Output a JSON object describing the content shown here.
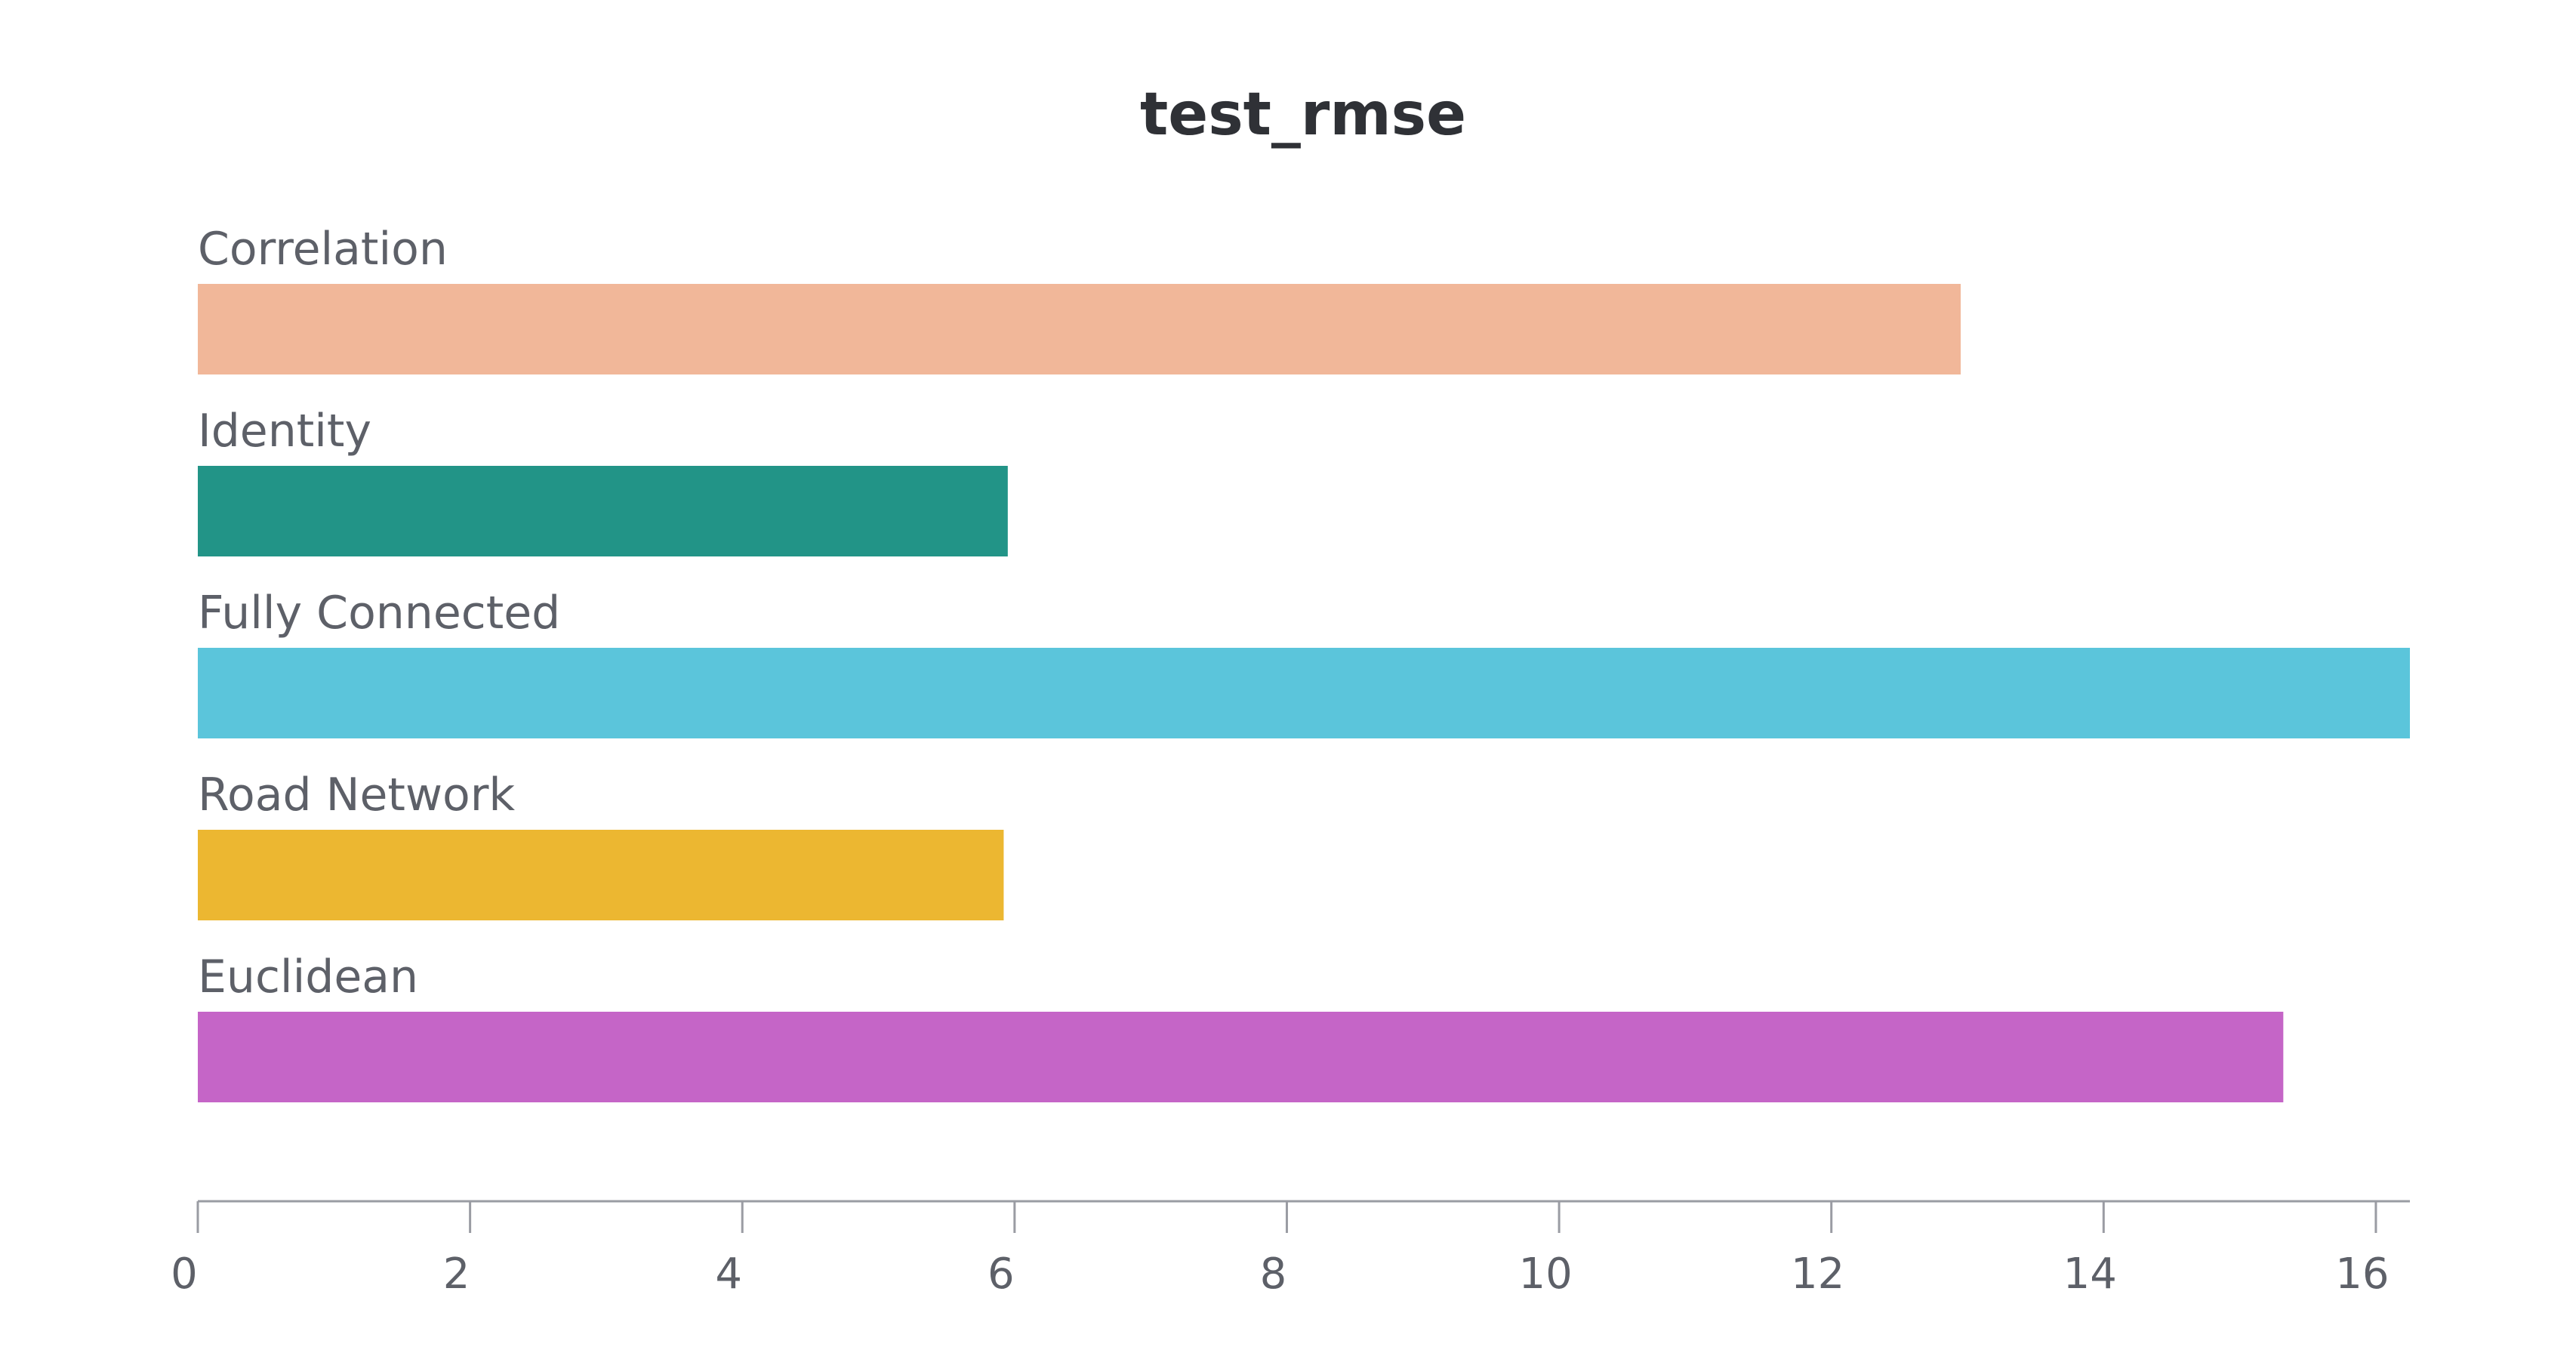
{
  "chart_data": {
    "type": "bar",
    "orientation": "horizontal",
    "title": "test_rmse",
    "xlabel": "",
    "ylabel": "",
    "xlim": [
      0,
      16.25
    ],
    "categories": [
      "Correlation",
      "Identity",
      "Fully Connected",
      "Road Network",
      "Euclidean"
    ],
    "values": [
      12.95,
      5.95,
      16.25,
      5.92,
      15.32
    ],
    "colors": [
      "#f1b799",
      "#229487",
      "#5bc5db",
      "#ecb731",
      "#c565c7"
    ],
    "ticks": [
      0,
      2,
      4,
      6,
      8,
      10,
      12,
      14,
      16
    ],
    "tick_labels": [
      "0",
      "2",
      "4",
      "6",
      "8",
      "10",
      "12",
      "14",
      "16"
    ],
    "grid": false,
    "legend": "none"
  }
}
